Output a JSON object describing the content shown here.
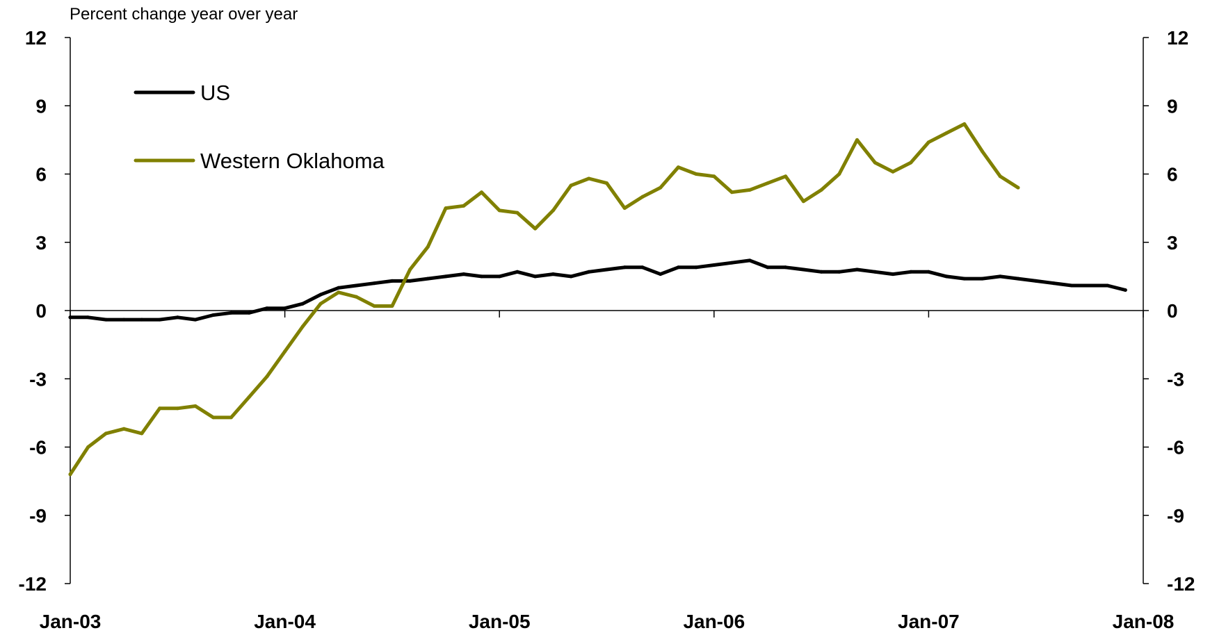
{
  "chart_data": {
    "type": "line",
    "title": "",
    "ylabel": "Percent change year over year",
    "xlabel": "",
    "ylim": [
      -12,
      12
    ],
    "y_ticks": [
      12,
      9,
      6,
      3,
      0,
      -3,
      -6,
      -9,
      -12
    ],
    "y_tick_labels": [
      "12",
      "9",
      "6",
      "3",
      "0",
      "-3",
      "-6",
      "-9",
      "-12"
    ],
    "x_ticks": [
      "2003-01",
      "2004-01",
      "2005-01",
      "2006-01",
      "2007-01",
      "2008-01"
    ],
    "x_tick_labels": [
      "Jan-03",
      "Jan-04",
      "Jan-05",
      "Jan-06",
      "Jan-07",
      "Jan-08"
    ],
    "xlim": [
      "2003-01",
      "2008-01"
    ],
    "grid": false,
    "legend_position": "top-left",
    "series": [
      {
        "name": "US",
        "color": "#000000",
        "points": [
          [
            "2003-01",
            -0.3
          ],
          [
            "2003-02",
            -0.3
          ],
          [
            "2003-03",
            -0.4
          ],
          [
            "2003-04",
            -0.4
          ],
          [
            "2003-05",
            -0.4
          ],
          [
            "2003-06",
            -0.4
          ],
          [
            "2003-07",
            -0.3
          ],
          [
            "2003-08",
            -0.4
          ],
          [
            "2003-09",
            -0.2
          ],
          [
            "2003-10",
            -0.1
          ],
          [
            "2003-11",
            -0.1
          ],
          [
            "2003-12",
            0.1
          ],
          [
            "2004-01",
            0.1
          ],
          [
            "2004-02",
            0.3
          ],
          [
            "2004-03",
            0.7
          ],
          [
            "2004-04",
            1.0
          ],
          [
            "2004-05",
            1.1
          ],
          [
            "2004-06",
            1.2
          ],
          [
            "2004-07",
            1.3
          ],
          [
            "2004-08",
            1.3
          ],
          [
            "2004-09",
            1.4
          ],
          [
            "2004-10",
            1.5
          ],
          [
            "2004-11",
            1.6
          ],
          [
            "2004-12",
            1.5
          ],
          [
            "2005-01",
            1.5
          ],
          [
            "2005-02",
            1.7
          ],
          [
            "2005-03",
            1.5
          ],
          [
            "2005-04",
            1.6
          ],
          [
            "2005-05",
            1.5
          ],
          [
            "2005-06",
            1.7
          ],
          [
            "2005-07",
            1.8
          ],
          [
            "2005-08",
            1.9
          ],
          [
            "2005-09",
            1.9
          ],
          [
            "2005-10",
            1.6
          ],
          [
            "2005-11",
            1.9
          ],
          [
            "2005-12",
            1.9
          ],
          [
            "2006-01",
            2.0
          ],
          [
            "2006-02",
            2.1
          ],
          [
            "2006-03",
            2.2
          ],
          [
            "2006-04",
            1.9
          ],
          [
            "2006-05",
            1.9
          ],
          [
            "2006-06",
            1.8
          ],
          [
            "2006-07",
            1.7
          ],
          [
            "2006-08",
            1.7
          ],
          [
            "2006-09",
            1.8
          ],
          [
            "2006-10",
            1.7
          ],
          [
            "2006-11",
            1.6
          ],
          [
            "2006-12",
            1.7
          ],
          [
            "2007-01",
            1.7
          ],
          [
            "2007-02",
            1.5
          ],
          [
            "2007-03",
            1.4
          ],
          [
            "2007-04",
            1.4
          ],
          [
            "2007-05",
            1.5
          ],
          [
            "2007-06",
            1.4
          ],
          [
            "2007-07",
            1.3
          ],
          [
            "2007-08",
            1.2
          ],
          [
            "2007-09",
            1.1
          ],
          [
            "2007-10",
            1.1
          ],
          [
            "2007-11",
            1.1
          ],
          [
            "2007-12",
            0.9
          ]
        ]
      },
      {
        "name": "Western Oklahoma",
        "color": "#808000",
        "points": [
          [
            "2003-01",
            -7.2
          ],
          [
            "2003-02",
            -6.0
          ],
          [
            "2003-03",
            -5.4
          ],
          [
            "2003-04",
            -5.2
          ],
          [
            "2003-05",
            -5.4
          ],
          [
            "2003-06",
            -4.3
          ],
          [
            "2003-07",
            -4.3
          ],
          [
            "2003-08",
            -4.2
          ],
          [
            "2003-09",
            -4.7
          ],
          [
            "2003-10",
            -4.7
          ],
          [
            "2003-11",
            -3.8
          ],
          [
            "2003-12",
            -2.9
          ],
          [
            "2004-01",
            -1.8
          ],
          [
            "2004-02",
            -0.7
          ],
          [
            "2004-03",
            0.3
          ],
          [
            "2004-04",
            0.8
          ],
          [
            "2004-05",
            0.6
          ],
          [
            "2004-06",
            0.2
          ],
          [
            "2004-07",
            0.2
          ],
          [
            "2004-08",
            1.8
          ],
          [
            "2004-09",
            2.8
          ],
          [
            "2004-10",
            4.5
          ],
          [
            "2004-11",
            4.6
          ],
          [
            "2004-12",
            5.2
          ],
          [
            "2005-01",
            4.4
          ],
          [
            "2005-02",
            4.3
          ],
          [
            "2005-03",
            3.6
          ],
          [
            "2005-04",
            4.4
          ],
          [
            "2005-05",
            5.5
          ],
          [
            "2005-06",
            5.8
          ],
          [
            "2005-07",
            5.6
          ],
          [
            "2005-08",
            4.5
          ],
          [
            "2005-09",
            5.0
          ],
          [
            "2005-10",
            5.4
          ],
          [
            "2005-11",
            6.3
          ],
          [
            "2005-12",
            6.0
          ],
          [
            "2006-01",
            5.9
          ],
          [
            "2006-02",
            5.2
          ],
          [
            "2006-03",
            5.3
          ],
          [
            "2006-04",
            5.6
          ],
          [
            "2006-05",
            5.9
          ],
          [
            "2006-06",
            4.8
          ],
          [
            "2006-07",
            5.3
          ],
          [
            "2006-08",
            6.0
          ],
          [
            "2006-09",
            7.5
          ],
          [
            "2006-10",
            6.5
          ],
          [
            "2006-11",
            6.1
          ],
          [
            "2006-12",
            6.5
          ],
          [
            "2007-01",
            7.4
          ],
          [
            "2007-02",
            7.8
          ],
          [
            "2007-03",
            8.2
          ],
          [
            "2007-04",
            7.0
          ],
          [
            "2007-05",
            5.9
          ],
          [
            "2007-06",
            5.4
          ]
        ]
      }
    ]
  }
}
